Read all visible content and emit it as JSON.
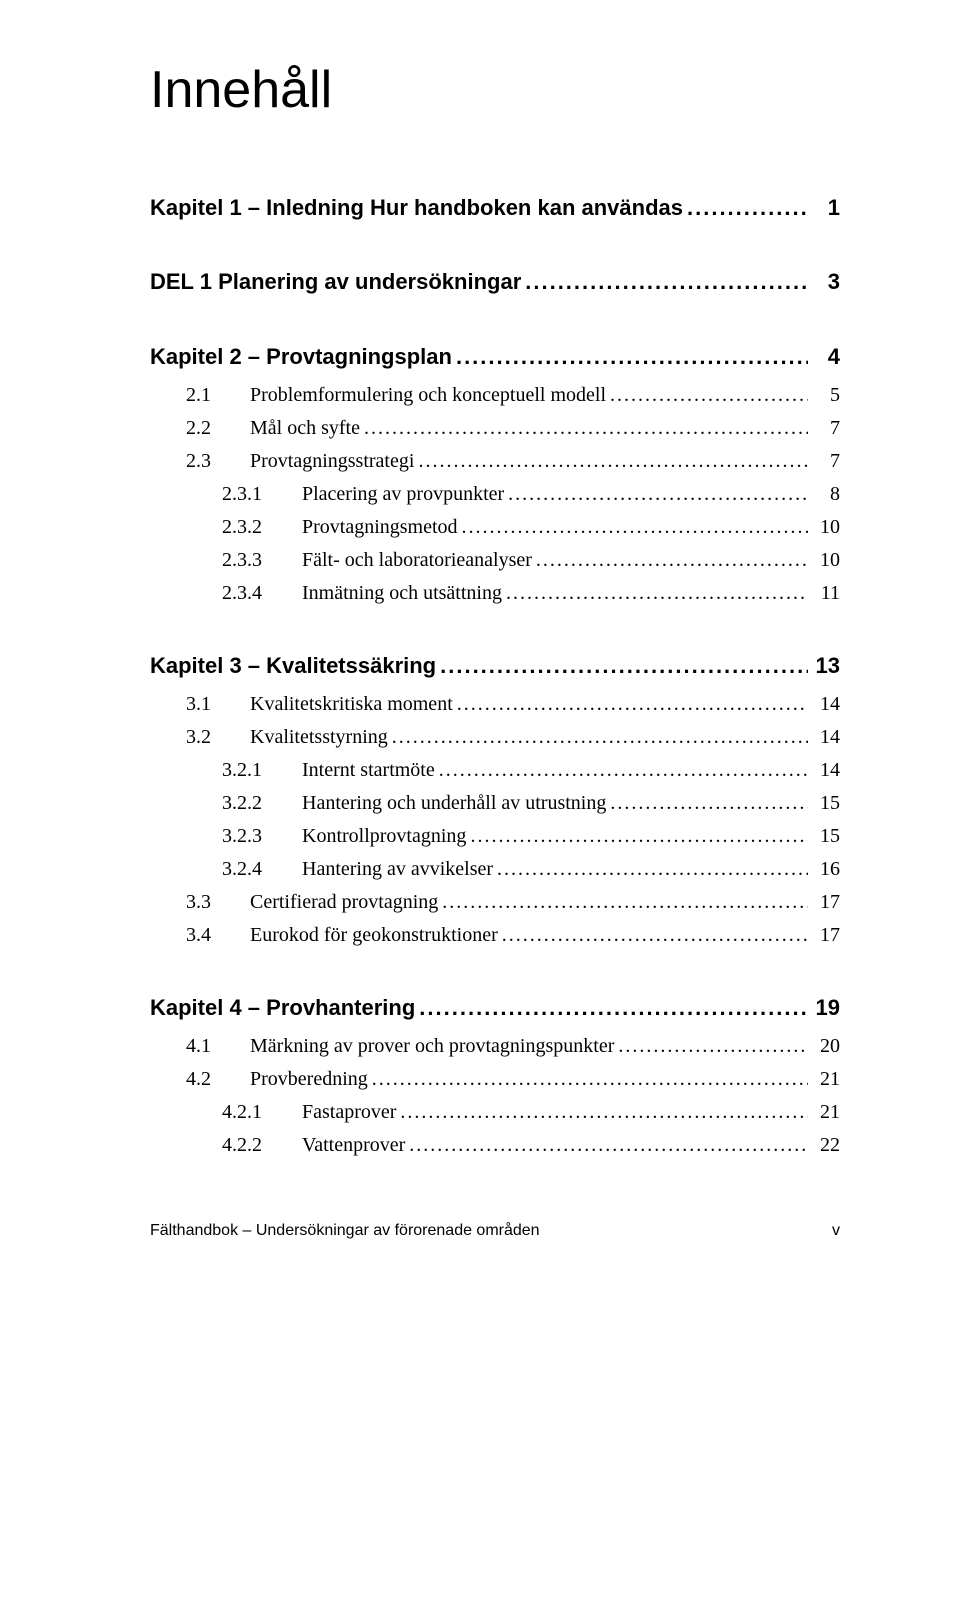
{
  "title": "Innehåll",
  "sections": [
    {
      "type": "heading",
      "num": "",
      "label": "Kapitel 1 – Inledning Hur handboken kan användas",
      "page": "1"
    },
    {
      "type": "heading",
      "num": "",
      "label": "DEL 1 Planering av undersökningar",
      "page": "3"
    },
    {
      "type": "heading",
      "num": "",
      "label": "Kapitel 2 – Provtagningsplan",
      "page": "4"
    },
    {
      "type": "entry",
      "indent": 1,
      "nw": "w1",
      "num": "2.1",
      "label": "Problemformulering och konceptuell modell",
      "page": "5"
    },
    {
      "type": "entry",
      "indent": 1,
      "nw": "w1",
      "num": "2.2",
      "label": "Mål och syfte",
      "page": "7"
    },
    {
      "type": "entry",
      "indent": 1,
      "nw": "w1",
      "num": "2.3",
      "label": "Provtagningsstrategi",
      "page": "7"
    },
    {
      "type": "entry",
      "indent": 2,
      "nw": "w2",
      "num": "2.3.1",
      "label": "Placering av provpunkter",
      "page": "8"
    },
    {
      "type": "entry",
      "indent": 2,
      "nw": "w2",
      "num": "2.3.2",
      "label": "Provtagningsmetod",
      "page": "10"
    },
    {
      "type": "entry",
      "indent": 2,
      "nw": "w2",
      "num": "2.3.3",
      "label": "Fält- och laboratorieanalyser",
      "page": "10"
    },
    {
      "type": "entry",
      "indent": 2,
      "nw": "w2",
      "num": "2.3.4",
      "label": "Inmätning och utsättning",
      "page": "11"
    },
    {
      "type": "heading",
      "num": "",
      "label": "Kapitel 3 – Kvalitetssäkring",
      "page": "13"
    },
    {
      "type": "entry",
      "indent": 1,
      "nw": "w1",
      "num": "3.1",
      "label": "Kvalitetskritiska moment",
      "page": "14"
    },
    {
      "type": "entry",
      "indent": 1,
      "nw": "w1",
      "num": "3.2",
      "label": "Kvalitetsstyrning",
      "page": "14"
    },
    {
      "type": "entry",
      "indent": 2,
      "nw": "w2",
      "num": "3.2.1",
      "label": "Internt startmöte",
      "page": "14"
    },
    {
      "type": "entry",
      "indent": 2,
      "nw": "w2",
      "num": "3.2.2",
      "label": "Hantering och underhåll av utrustning",
      "page": "15"
    },
    {
      "type": "entry",
      "indent": 2,
      "nw": "w2",
      "num": "3.2.3",
      "label": "Kontrollprovtagning",
      "page": "15"
    },
    {
      "type": "entry",
      "indent": 2,
      "nw": "w2",
      "num": "3.2.4",
      "label": "Hantering av avvikelser",
      "page": "16"
    },
    {
      "type": "entry",
      "indent": 1,
      "nw": "w1",
      "num": "3.3",
      "label": "Certifierad provtagning",
      "page": "17"
    },
    {
      "type": "entry",
      "indent": 1,
      "nw": "w1",
      "num": "3.4",
      "label": "Eurokod för geokonstruktioner",
      "page": "17"
    },
    {
      "type": "heading",
      "num": "",
      "label": "Kapitel 4 – Provhantering",
      "page": "19"
    },
    {
      "type": "entry",
      "indent": 1,
      "nw": "w1",
      "num": "4.1",
      "label": "Märkning av prover och provtagningspunkter",
      "page": "20"
    },
    {
      "type": "entry",
      "indent": 1,
      "nw": "w1",
      "num": "4.2",
      "label": "Provberedning",
      "page": "21"
    },
    {
      "type": "entry",
      "indent": 2,
      "nw": "w2",
      "num": "4.2.1",
      "label": "Fastaprover",
      "page": "21"
    },
    {
      "type": "entry",
      "indent": 2,
      "nw": "w2",
      "num": "4.2.2",
      "label": "Vattenprover",
      "page": "22"
    }
  ],
  "footer": {
    "left": "Fälthandbok – Undersökningar av förorenade områden",
    "right": "v"
  }
}
